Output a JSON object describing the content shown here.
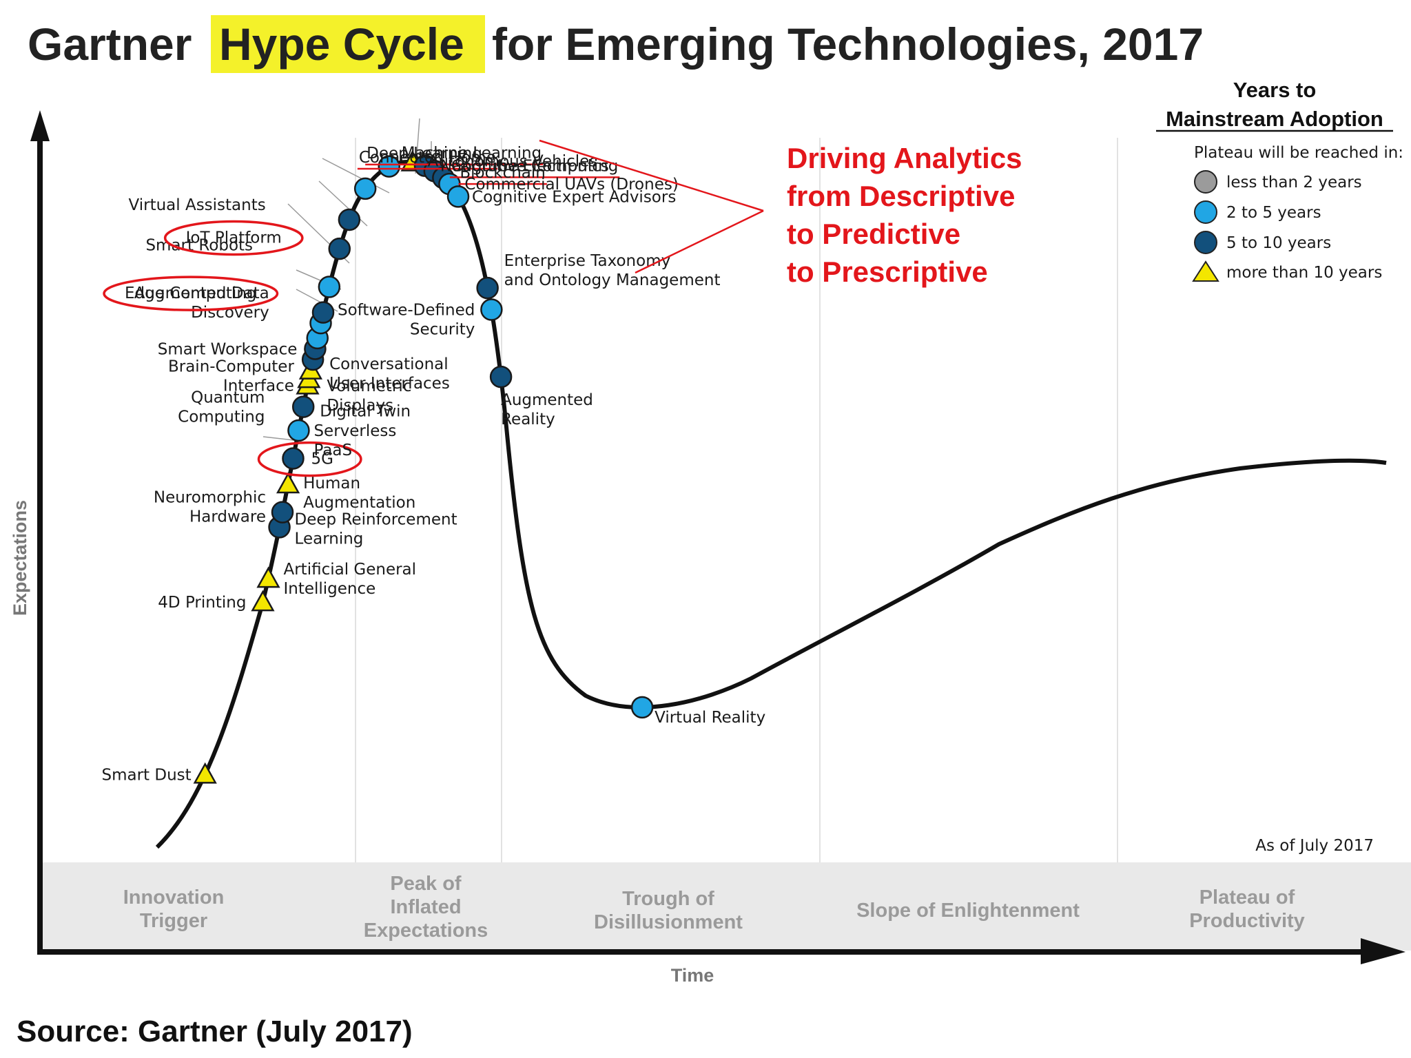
{
  "chart_data": {
    "type": "scatter",
    "title_parts": [
      "Gartner",
      "Hype Cycle",
      "for Emerging Technologies, 2017"
    ],
    "xlabel": "Time",
    "ylabel": "Expectations",
    "as_of": "As of July 2017",
    "source": "Source: Gartner (July 2017)",
    "phases": [
      "Innovation Trigger",
      "Peak of Inflated Expectations",
      "Trough of Disillusionment",
      "Slope of Enlightenment",
      "Plateau of Productivity"
    ],
    "legend": {
      "title_line1": "Years to",
      "title_line2": "Mainstream Adoption",
      "subtitle": "Plateau will be reached in:",
      "position": "top-right",
      "items": [
        {
          "label": "less than 2 years",
          "marker": "circle",
          "color": "#9b9b9b"
        },
        {
          "label": "2 to 5 years",
          "marker": "circle",
          "color": "#21a6e4"
        },
        {
          "label": "5 to 10 years",
          "marker": "circle",
          "color": "#12507c"
        },
        {
          "label": "more than 10 years",
          "marker": "triangle",
          "color": "#f3e600"
        }
      ]
    },
    "annotation": [
      "Driving Analytics",
      "from Descriptive",
      "to Predictive",
      "to Prescriptive"
    ],
    "technologies": [
      {
        "name": "Smart Dust",
        "class": "more than 10 years",
        "t": 0.04,
        "highlight": "none"
      },
      {
        "name": "4D Printing",
        "class": "more than 10 years",
        "t": 0.123,
        "highlight": "none"
      },
      {
        "name": "Artificial General Intelligence",
        "class": "more than 10 years",
        "t": 0.134,
        "highlight": "none"
      },
      {
        "name": "Deep Reinforcement Learning",
        "class": "5 to 10 years",
        "t": 0.158,
        "highlight": "none"
      },
      {
        "name": "Neuromorphic Hardware",
        "class": "5 to 10 years",
        "t": 0.165,
        "highlight": "none"
      },
      {
        "name": "Human Augmentation",
        "class": "more than 10 years",
        "t": 0.178,
        "highlight": "none"
      },
      {
        "name": "5G",
        "class": "5 to 10 years",
        "t": 0.19,
        "highlight": "circle"
      },
      {
        "name": "Serverless PaaS",
        "class": "2 to 5 years",
        "t": 0.203,
        "highlight": "none"
      },
      {
        "name": "Digital Twin",
        "class": "5 to 10 years",
        "t": 0.214,
        "highlight": "none"
      },
      {
        "name": "Quantum Computing",
        "class": "more than 10 years",
        "t": 0.224,
        "highlight": "none"
      },
      {
        "name": "Volumetric Displays",
        "class": "more than 10 years",
        "t": 0.227,
        "highlight": "none"
      },
      {
        "name": "Brain-Computer Interface",
        "class": "more than 10 years",
        "t": 0.231,
        "highlight": "none"
      },
      {
        "name": "Conversational User Interfaces",
        "class": "5 to 10 years",
        "t": 0.236,
        "highlight": "none"
      },
      {
        "name": "Smart Workspace",
        "class": "5 to 10 years",
        "t": 0.241,
        "highlight": "none"
      },
      {
        "name": "Augmented Data Discovery",
        "class": "2 to 5 years",
        "t": 0.246,
        "highlight": "none"
      },
      {
        "name": "Edge Computing",
        "class": "2 to 5 years",
        "t": 0.253,
        "highlight": "circle"
      },
      {
        "name": "Smart Robots",
        "class": "5 to 10 years",
        "t": 0.258,
        "highlight": "none"
      },
      {
        "name": "IoT Platform",
        "class": "2 to 5 years",
        "t": 0.27,
        "highlight": "circle"
      },
      {
        "name": "Virtual Assistants",
        "class": "5 to 10 years",
        "t": 0.288,
        "highlight": "none"
      },
      {
        "name": "Connected Home",
        "class": "5 to 10 years",
        "t": 0.302,
        "highlight": "underline"
      },
      {
        "name": "Deep Learning",
        "class": "2 to 5 years",
        "t": 0.318,
        "highlight": "underline"
      },
      {
        "name": "Machine Learning",
        "class": "2 to 5 years",
        "t": 0.333,
        "highlight": "underline"
      },
      {
        "name": "Autonomous Vehicles",
        "class": "more than 10 years",
        "t": 0.344,
        "highlight": "none"
      },
      {
        "name": "Nanotube Electronics",
        "class": "5 to 10 years",
        "t": 0.35,
        "highlight": "none"
      },
      {
        "name": "Cognitive Computing",
        "class": "5 to 10 years",
        "t": 0.355,
        "highlight": "underline"
      },
      {
        "name": "Blockchain",
        "class": "5 to 10 years",
        "t": 0.36,
        "highlight": "underline"
      },
      {
        "name": "Commercial UAVs (Drones)",
        "class": "2 to 5 years",
        "t": 0.364,
        "highlight": "none"
      },
      {
        "name": "Cognitive Expert Advisors",
        "class": "2 to 5 years",
        "t": 0.371,
        "highlight": "none"
      },
      {
        "name": "Enterprise Taxonomy and Ontology Management",
        "class": "5 to 10 years",
        "t": 0.415,
        "highlight": "none"
      },
      {
        "name": "Software-Defined Security",
        "class": "2 to 5 years",
        "t": 0.425,
        "highlight": "none"
      },
      {
        "name": "Augmented Reality",
        "class": "5 to 10 years",
        "t": 0.456,
        "highlight": "none"
      },
      {
        "name": "Virtual Reality",
        "class": "2 to 5 years",
        "t": 0.637,
        "highlight": "none"
      }
    ]
  }
}
